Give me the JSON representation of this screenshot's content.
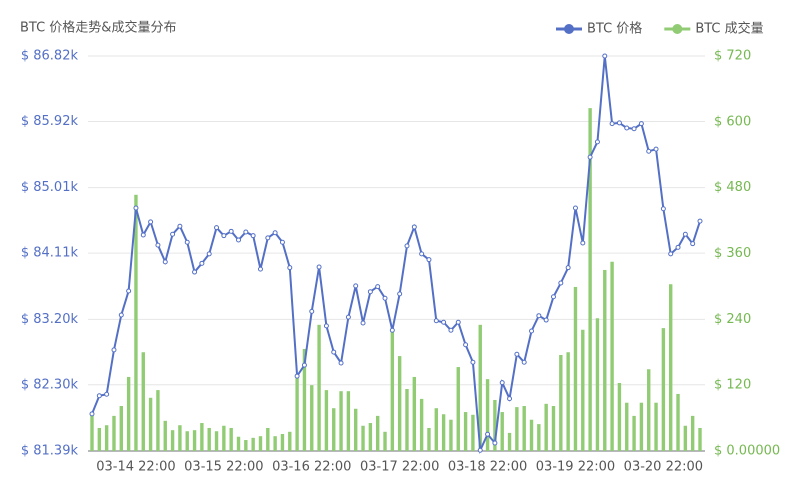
{
  "chart_data": {
    "type": "combo",
    "title": "BTC 价格走势&成交量分布",
    "categories": [
      null,
      null,
      null,
      null,
      null,
      null,
      "03-14 22:00",
      null,
      null,
      null,
      null,
      null,
      null,
      null,
      null,
      null,
      null,
      null,
      "03-15 22:00",
      null,
      null,
      null,
      null,
      null,
      null,
      null,
      null,
      null,
      null,
      null,
      "03-16 22:00",
      null,
      null,
      null,
      null,
      null,
      null,
      null,
      null,
      null,
      null,
      null,
      "03-17 22:00",
      null,
      null,
      null,
      null,
      null,
      null,
      null,
      null,
      null,
      null,
      null,
      "03-18 22:00",
      null,
      null,
      null,
      null,
      null,
      null,
      null,
      null,
      null,
      null,
      null,
      "03-19 22:00",
      null,
      null,
      null,
      null,
      null,
      null,
      null,
      null,
      null,
      null,
      null,
      "03-20 22:00",
      null,
      null,
      null,
      null,
      null
    ],
    "series": [
      {
        "name": "BTC 价格",
        "type": "line",
        "axis": "y",
        "color": "#5470c6",
        "values": [
          81.9,
          82.15,
          82.17,
          82.78,
          83.26,
          83.59,
          84.73,
          84.36,
          84.54,
          84.22,
          83.99,
          84.37,
          84.48,
          84.26,
          83.85,
          83.97,
          84.1,
          84.46,
          84.35,
          84.41,
          84.29,
          84.4,
          84.35,
          83.89,
          84.32,
          84.39,
          84.26,
          83.91,
          82.42,
          82.57,
          83.31,
          83.92,
          83.11,
          82.75,
          82.6,
          83.23,
          83.66,
          83.15,
          83.58,
          83.65,
          83.49,
          83.05,
          83.55,
          84.21,
          84.47,
          84.1,
          84.02,
          83.18,
          83.16,
          83.05,
          83.16,
          82.85,
          82.61,
          81.4,
          81.62,
          81.5,
          82.33,
          82.11,
          82.72,
          82.61,
          83.04,
          83.25,
          83.19,
          83.51,
          83.7,
          83.91,
          84.73,
          84.25,
          85.43,
          85.64,
          86.82,
          85.89,
          85.9,
          85.83,
          85.82,
          85.89,
          85.51,
          85.54,
          84.72,
          84.1,
          84.19,
          84.37,
          84.24,
          84.55
        ]
      },
      {
        "name": "BTC 成交量",
        "type": "bar",
        "axis": "y2",
        "color": "#91cc75",
        "values": [
          66,
          42,
          47,
          64,
          82,
          135,
          467,
          180,
          97,
          111,
          55,
          38,
          47,
          36,
          38,
          51,
          42,
          36,
          46,
          42,
          26,
          20,
          24,
          27,
          42,
          27,
          31,
          35,
          133,
          186,
          120,
          230,
          111,
          78,
          109,
          109,
          77,
          46,
          51,
          64,
          35,
          224,
          173,
          113,
          135,
          95,
          42,
          78,
          67,
          57,
          153,
          71,
          66,
          230,
          131,
          93,
          71,
          33,
          80,
          82,
          57,
          49,
          86,
          82,
          175,
          180,
          299,
          221,
          625,
          242,
          330,
          345,
          124,
          88,
          64,
          88,
          149,
          88,
          224,
          304,
          104,
          46,
          64,
          42
        ]
      }
    ],
    "ylim": [
      81.39,
      86.82
    ],
    "yticks": [
      {
        "value": 81.39,
        "label": "$ 81.39k"
      },
      {
        "value": 82.3,
        "label": "$ 82.30k"
      },
      {
        "value": 83.2,
        "label": "$ 83.20k"
      },
      {
        "value": 84.11,
        "label": "$ 84.11k"
      },
      {
        "value": 85.01,
        "label": "$ 85.01k"
      },
      {
        "value": 85.92,
        "label": "$ 85.92k"
      },
      {
        "value": 86.82,
        "label": "$ 86.82k"
      }
    ],
    "y2lim": [
      0,
      720
    ],
    "y2ticks": [
      {
        "value": 0,
        "label": "$ 0.00000"
      },
      {
        "value": 120,
        "label": "$ 120"
      },
      {
        "value": 240,
        "label": "$ 240"
      },
      {
        "value": 360,
        "label": "$ 360"
      },
      {
        "value": 480,
        "label": "$ 480"
      },
      {
        "value": 600,
        "label": "$ 600"
      },
      {
        "value": 720,
        "label": "$ 720"
      }
    ],
    "grid": true,
    "legend": "top-right"
  }
}
